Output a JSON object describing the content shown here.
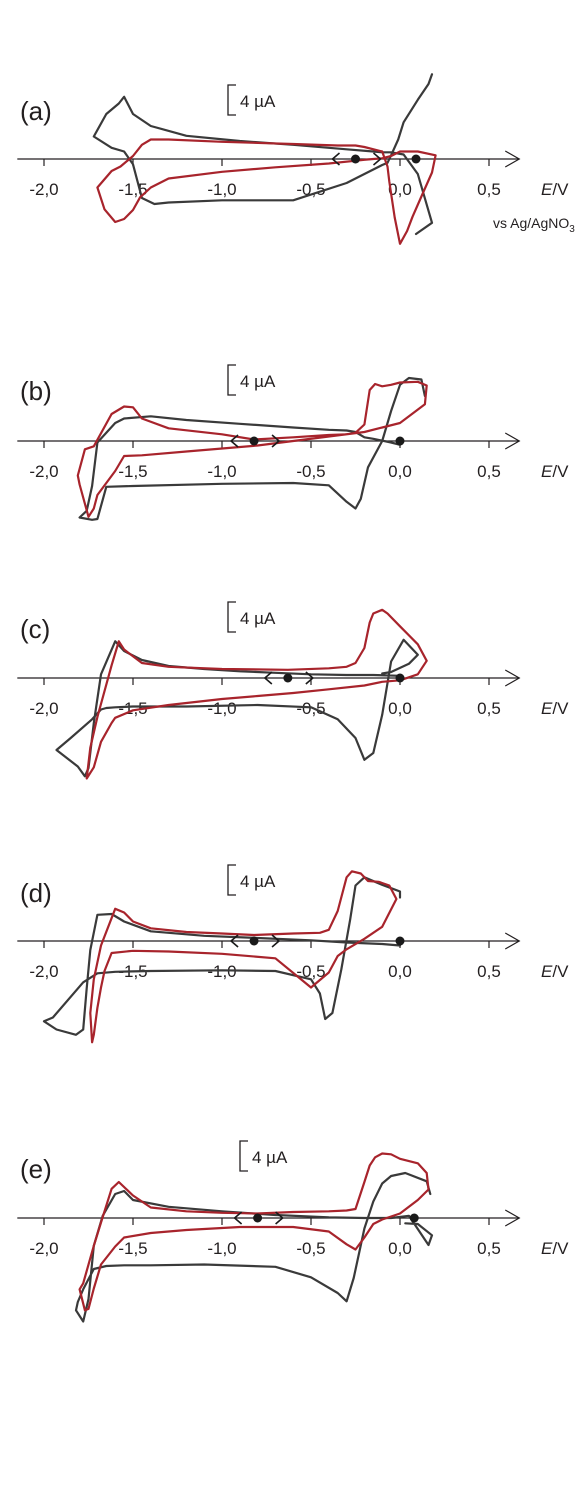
{
  "colors": {
    "axis": "#231f20",
    "black_trace": "#3a3a3a",
    "red_trace": "#a8242c"
  },
  "axis_label": {
    "E": "E",
    "unit": "/V"
  },
  "reference_label": "vs Ag/AgNO3",
  "scale_bar_label": "4 µA",
  "chart_data": [
    {
      "type": "line",
      "panel": "(a)",
      "x_ticks": [
        -2.0,
        -1.5,
        -1.0,
        -0.5,
        0.0,
        0.5
      ],
      "x_tick_labels": [
        "-2,0",
        "-1,5",
        "-1,0",
        "-0,5",
        "0,0",
        "0,5"
      ],
      "xlim": [
        -2.15,
        0.67
      ],
      "xlabel": "E/V",
      "reference": "vs Ag/AgNO3",
      "scale_bar": "4 µA",
      "start_points_V": [
        -0.25,
        0.09
      ],
      "series": [
        {
          "color": "black",
          "x": [
            0.09,
            0.18,
            0.1,
            0.02,
            -0.05,
            -0.1,
            -0.15,
            -0.3,
            -0.6,
            -0.9,
            -1.2,
            -1.4,
            -1.5,
            -1.55,
            -1.58,
            -1.65,
            -1.72,
            -1.62,
            -1.55,
            -1.5,
            -1.45,
            -1.38,
            -1.3,
            -1.0,
            -0.6,
            -0.3,
            -0.2,
            -0.1,
            -0.07,
            -0.05,
            -0.01,
            0.02,
            0.1,
            0.16,
            0.18
          ],
          "y": [
            -10.0,
            -8.5,
            -2.0,
            0.6,
            0.9,
            0.9,
            1.0,
            1.3,
            1.9,
            2.4,
            3.1,
            4.4,
            6.0,
            8.3,
            7.4,
            6.0,
            3.0,
            1.5,
            1.0,
            -0.7,
            -5.2,
            -6.0,
            -5.8,
            -5.5,
            -5.5,
            -3.2,
            -2.0,
            -0.8,
            -0.5,
            0.5,
            2.6,
            4.9,
            7.9,
            10.0,
            11.3
          ]
        },
        {
          "color": "red",
          "x": [
            -0.25,
            -0.2,
            -0.1,
            -0.07,
            -0.06,
            -0.03,
            0.0,
            0.04,
            0.07,
            0.12,
            0.18,
            0.2,
            0.1,
            0.05,
            0.0,
            -0.05,
            -0.1,
            -0.15,
            -0.2,
            -0.4,
            -0.7,
            -1.0,
            -1.3,
            -1.4,
            -1.46,
            -1.5,
            -1.55,
            -1.6,
            -1.66,
            -1.7,
            -1.62,
            -1.57,
            -1.5,
            -1.45,
            -1.4,
            -1.3,
            -1.0,
            -0.6,
            -0.35,
            -0.25
          ],
          "y": [
            1.8,
            1.6,
            1.0,
            -1.0,
            -3.0,
            -7.8,
            -11.3,
            -9.6,
            -7.7,
            -5.0,
            -1.8,
            0.5,
            1.0,
            1.0,
            1.0,
            0.4,
            0.1,
            0.0,
            -0.1,
            -0.6,
            -1.1,
            -1.7,
            -2.6,
            -3.8,
            -5.1,
            -6.8,
            -8.0,
            -8.4,
            -6.7,
            -3.8,
            -1.6,
            -1.0,
            0.4,
            1.9,
            2.6,
            2.6,
            2.3,
            2.0,
            1.8,
            1.8
          ]
        }
      ]
    },
    {
      "type": "line",
      "panel": "(b)",
      "x_ticks": [
        -2.0,
        -1.5,
        -1.0,
        -0.5,
        0.0,
        0.5
      ],
      "x_tick_labels": [
        "-2,0",
        "-1,5",
        "-1,0",
        "-0,5",
        "0,0",
        "0,5"
      ],
      "xlim": [
        -2.15,
        0.67
      ],
      "xlabel": "E/V",
      "scale_bar": "4 µA",
      "start_points_V": [
        -0.82,
        0.0
      ],
      "series": [
        {
          "color": "black",
          "x": [
            0.0,
            -0.05,
            -0.15,
            -0.2,
            -0.25,
            -0.3,
            -0.4,
            -0.6,
            -0.9,
            -1.2,
            -1.4,
            -1.55,
            -1.6,
            -1.7,
            -1.73,
            -1.76,
            -1.8,
            -1.73,
            -1.7,
            -1.65,
            -1.5,
            -1.0,
            -0.6,
            -0.4,
            -0.3,
            -0.25,
            -0.22,
            -0.18,
            -0.1,
            -0.05,
            0.0,
            0.05,
            0.12,
            0.14
          ],
          "y": [
            -0.5,
            -0.2,
            0.3,
            0.5,
            1.2,
            1.4,
            1.5,
            1.8,
            2.3,
            2.8,
            3.3,
            3.0,
            2.4,
            -0.2,
            -6.0,
            -9.3,
            -10.2,
            -10.5,
            -10.4,
            -6.1,
            -6.0,
            -5.7,
            -5.6,
            -5.9,
            -8.1,
            -9.0,
            -7.7,
            -3.5,
            0.0,
            4.0,
            7.5,
            8.4,
            8.2,
            6.0
          ]
        },
        {
          "color": "red",
          "x": [
            -0.82,
            -0.6,
            -0.4,
            -0.3,
            -0.25,
            -0.2,
            -0.17,
            -0.14,
            -0.1,
            -0.05,
            0.0,
            0.1,
            0.15,
            0.14,
            0.0,
            -0.2,
            -0.4,
            -0.6,
            -0.8,
            -1.2,
            -1.45,
            -1.55,
            -1.6,
            -1.7,
            -1.72,
            -1.75,
            -1.8,
            -1.81,
            -1.77,
            -1.72,
            -1.62,
            -1.55,
            -1.5,
            -1.45,
            -1.3,
            -1.0,
            -0.82
          ],
          "y": [
            0.2,
            0.5,
            0.8,
            0.9,
            1.1,
            2.2,
            6.8,
            7.6,
            7.3,
            7.5,
            7.8,
            7.9,
            7.4,
            4.9,
            2.4,
            1.2,
            0.6,
            0.0,
            -0.6,
            -1.4,
            -1.9,
            -2.0,
            -4.0,
            -7.2,
            -9.0,
            -10.1,
            -5.8,
            -4.6,
            -1.1,
            -0.7,
            3.6,
            4.6,
            4.5,
            3.0,
            1.7,
            0.9,
            0.2
          ]
        }
      ]
    },
    {
      "type": "line",
      "panel": "(c)",
      "x_ticks": [
        -2.0,
        -1.5,
        -1.0,
        -0.5,
        0.0,
        0.5
      ],
      "x_tick_labels": [
        "-2,0",
        "-1,5",
        "-1,0",
        "-0,5",
        "0,0",
        "0,5"
      ],
      "xlim": [
        -2.15,
        0.67
      ],
      "xlabel": "E/V",
      "scale_bar": "4 µA",
      "start_points_V": [
        -0.63,
        0.0
      ],
      "series": [
        {
          "color": "black",
          "x": [
            0.0,
            -0.15,
            -0.3,
            -0.5,
            -0.7,
            -0.9,
            -1.1,
            -1.3,
            -1.45,
            -1.55,
            -1.6,
            -1.68,
            -1.72,
            -1.75,
            -1.77,
            -1.81,
            -1.93,
            -1.85,
            -1.73,
            -1.68,
            -1.65,
            -1.6,
            -1.5,
            -1.2,
            -0.8,
            -0.5,
            -0.35,
            -0.25,
            -0.2,
            -0.15,
            -0.1,
            -0.05,
            0.02,
            0.1,
            0.05,
            -0.05,
            -0.1
          ],
          "y": [
            0.3,
            0.4,
            0.4,
            0.5,
            0.7,
            0.9,
            1.2,
            1.6,
            2.4,
            3.6,
            4.9,
            0.5,
            -6.0,
            -12.0,
            -13.1,
            -11.8,
            -9.6,
            -8.0,
            -5.5,
            -4.2,
            -4.0,
            -3.9,
            -3.8,
            -3.8,
            -3.6,
            -3.9,
            -5.5,
            -8.0,
            -10.9,
            -10.0,
            -4.9,
            2.2,
            5.1,
            3.1,
            1.9,
            0.8,
            0.6
          ]
        },
        {
          "color": "red",
          "x": [
            -0.63,
            -0.4,
            -0.3,
            -0.25,
            -0.2,
            -0.17,
            -0.15,
            -0.1,
            -0.07,
            0.0,
            0.1,
            0.15,
            0.1,
            0.0,
            -0.1,
            -0.2,
            -0.4,
            -0.6,
            -0.8,
            -1.0,
            -1.3,
            -1.5,
            -1.6,
            -1.62,
            -1.68,
            -1.72,
            -1.76,
            -1.74,
            -1.7,
            -1.62,
            -1.58,
            -1.55,
            -1.45,
            -1.3,
            -1.0,
            -0.63
          ],
          "y": [
            1.1,
            1.3,
            1.5,
            2.0,
            4.0,
            7.4,
            8.6,
            9.1,
            8.6,
            6.9,
            4.5,
            2.3,
            0.5,
            -0.3,
            -0.5,
            -1.0,
            -1.5,
            -2.0,
            -2.4,
            -2.8,
            -3.6,
            -4.3,
            -5.3,
            -6.0,
            -8.5,
            -11.9,
            -13.4,
            -9.3,
            -5.2,
            1.7,
            4.9,
            3.8,
            2.0,
            1.5,
            1.2,
            1.1
          ]
        }
      ]
    },
    {
      "type": "line",
      "panel": "(d)",
      "x_ticks": [
        -2.0,
        -1.5,
        -1.0,
        -0.5,
        0.0,
        0.5
      ],
      "x_tick_labels": [
        "-2,0",
        "-1,5",
        "-1,0",
        "-0,5",
        "0,0",
        "0,5"
      ],
      "xlim": [
        -2.15,
        0.67
      ],
      "xlabel": "E/V",
      "scale_bar": "4 µA",
      "start_points_V": [
        -0.82,
        0.0
      ],
      "series": [
        {
          "color": "black",
          "x": [
            0.0,
            -0.1,
            -0.3,
            -0.5,
            -0.8,
            -1.1,
            -1.4,
            -1.55,
            -1.62,
            -1.7,
            -1.74,
            -1.76,
            -1.78,
            -1.82,
            -1.93,
            -2.0,
            -1.95,
            -1.78,
            -1.7,
            -1.6,
            -1.4,
            -1.0,
            -0.7,
            -0.5,
            -0.45,
            -0.42,
            -0.38,
            -0.33,
            -0.28,
            -0.25,
            -0.2,
            -0.1,
            0.0,
            0.0
          ],
          "y": [
            -0.6,
            -0.4,
            -0.2,
            0.1,
            0.4,
            0.7,
            1.3,
            2.6,
            3.6,
            3.5,
            -1.2,
            -6.3,
            -11.8,
            -12.5,
            -11.8,
            -10.7,
            -10.2,
            -5.5,
            -4.3,
            -4.1,
            -4.0,
            -3.9,
            -4.0,
            -5.1,
            -7.0,
            -10.4,
            -9.6,
            -3.8,
            2.9,
            7.4,
            8.5,
            7.5,
            6.6,
            5.8
          ]
        },
        {
          "color": "red",
          "x": [
            -0.82,
            -0.6,
            -0.45,
            -0.4,
            -0.35,
            -0.3,
            -0.27,
            -0.22,
            -0.18,
            -0.12,
            -0.06,
            -0.02,
            -0.1,
            -0.2,
            -0.3,
            -0.35,
            -0.4,
            -0.5,
            -0.7,
            -1.0,
            -1.3,
            -1.5,
            -1.62,
            -1.66,
            -1.68,
            -1.7,
            -1.72,
            -1.73,
            -1.74,
            -1.72,
            -1.68,
            -1.6,
            -1.55,
            -1.5,
            -1.4,
            -1.2,
            -1.0,
            -0.82
          ],
          "y": [
            0.8,
            1.0,
            1.1,
            1.5,
            4.0,
            8.5,
            9.3,
            9.0,
            8.0,
            7.9,
            7.4,
            5.6,
            1.9,
            0.3,
            -1.1,
            -2.0,
            -4.2,
            -6.2,
            -2.3,
            -1.7,
            -1.4,
            -1.3,
            -1.6,
            -4.0,
            -6.2,
            -8.9,
            -12.5,
            -13.5,
            -9.6,
            -5.1,
            -0.6,
            4.3,
            3.8,
            2.6,
            1.7,
            1.2,
            1.0,
            0.8
          ]
        }
      ]
    },
    {
      "type": "line",
      "panel": "(e)",
      "x_ticks": [
        -2.0,
        -1.5,
        -1.0,
        -0.5,
        0.0,
        0.5
      ],
      "x_tick_labels": [
        "-2,0",
        "-1,5",
        "-1,0",
        "-0,5",
        "0,0",
        "0,5"
      ],
      "xlim": [
        -2.15,
        0.67
      ],
      "xlabel": "E/V",
      "scale_bar": "4 µA",
      "start_points_V": [
        -0.8,
        0.08
      ],
      "series": [
        {
          "color": "black",
          "x": [
            0.03,
            0.1,
            0.18,
            0.16,
            0.05,
            -0.05,
            -0.2,
            -0.4,
            -0.7,
            -1.0,
            -1.3,
            -1.5,
            -1.55,
            -1.6,
            -1.67,
            -1.72,
            -1.75,
            -1.78,
            -1.82,
            -1.81,
            -1.78,
            -1.72,
            -1.65,
            -1.55,
            -1.4,
            -1.1,
            -0.7,
            -0.5,
            -0.35,
            -0.3,
            -0.26,
            -0.2,
            -0.15,
            -0.1,
            -0.05,
            0.03,
            0.15,
            0.17
          ],
          "y": [
            -0.7,
            -0.8,
            -2.3,
            -3.6,
            0.3,
            0.0,
            0.0,
            0.1,
            0.4,
            0.9,
            1.5,
            2.4,
            3.6,
            3.2,
            0.3,
            -3.7,
            -10.8,
            -13.8,
            -12.3,
            -11.2,
            -9.5,
            -6.8,
            -6.4,
            -6.3,
            -6.3,
            -6.2,
            -6.5,
            -7.9,
            -10.0,
            -11.1,
            -8.0,
            -1.4,
            2.2,
            4.6,
            5.6,
            6.0,
            4.9,
            3.2
          ]
        },
        {
          "color": "red",
          "x": [
            -0.8,
            -0.6,
            -0.4,
            -0.3,
            -0.25,
            -0.2,
            -0.17,
            -0.14,
            -0.1,
            -0.05,
            0.0,
            0.1,
            0.15,
            0.16,
            0.1,
            0.0,
            -0.1,
            -0.15,
            -0.2,
            -0.25,
            -0.3,
            -0.4,
            -0.6,
            -0.9,
            -1.2,
            -1.4,
            -1.55,
            -1.6,
            -1.68,
            -1.72,
            -1.75,
            -1.77,
            -1.8,
            -1.78,
            -1.72,
            -1.68,
            -1.62,
            -1.58,
            -1.5,
            -1.4,
            -1.2,
            -1.0,
            -0.8
          ],
          "y": [
            0.6,
            0.8,
            0.9,
            1.0,
            1.2,
            4.8,
            7.0,
            8.1,
            8.6,
            8.5,
            7.9,
            7.3,
            6.0,
            3.8,
            2.4,
            0.6,
            -0.2,
            -0.8,
            -2.6,
            -4.2,
            -3.5,
            -1.8,
            -1.2,
            -1.2,
            -1.6,
            -2.0,
            -2.6,
            -3.8,
            -6.2,
            -9.4,
            -12.1,
            -12.3,
            -9.5,
            -8.7,
            -3.7,
            -0.6,
            3.9,
            4.8,
            3.0,
            1.4,
            0.9,
            0.7,
            0.6
          ]
        }
      ]
    }
  ]
}
